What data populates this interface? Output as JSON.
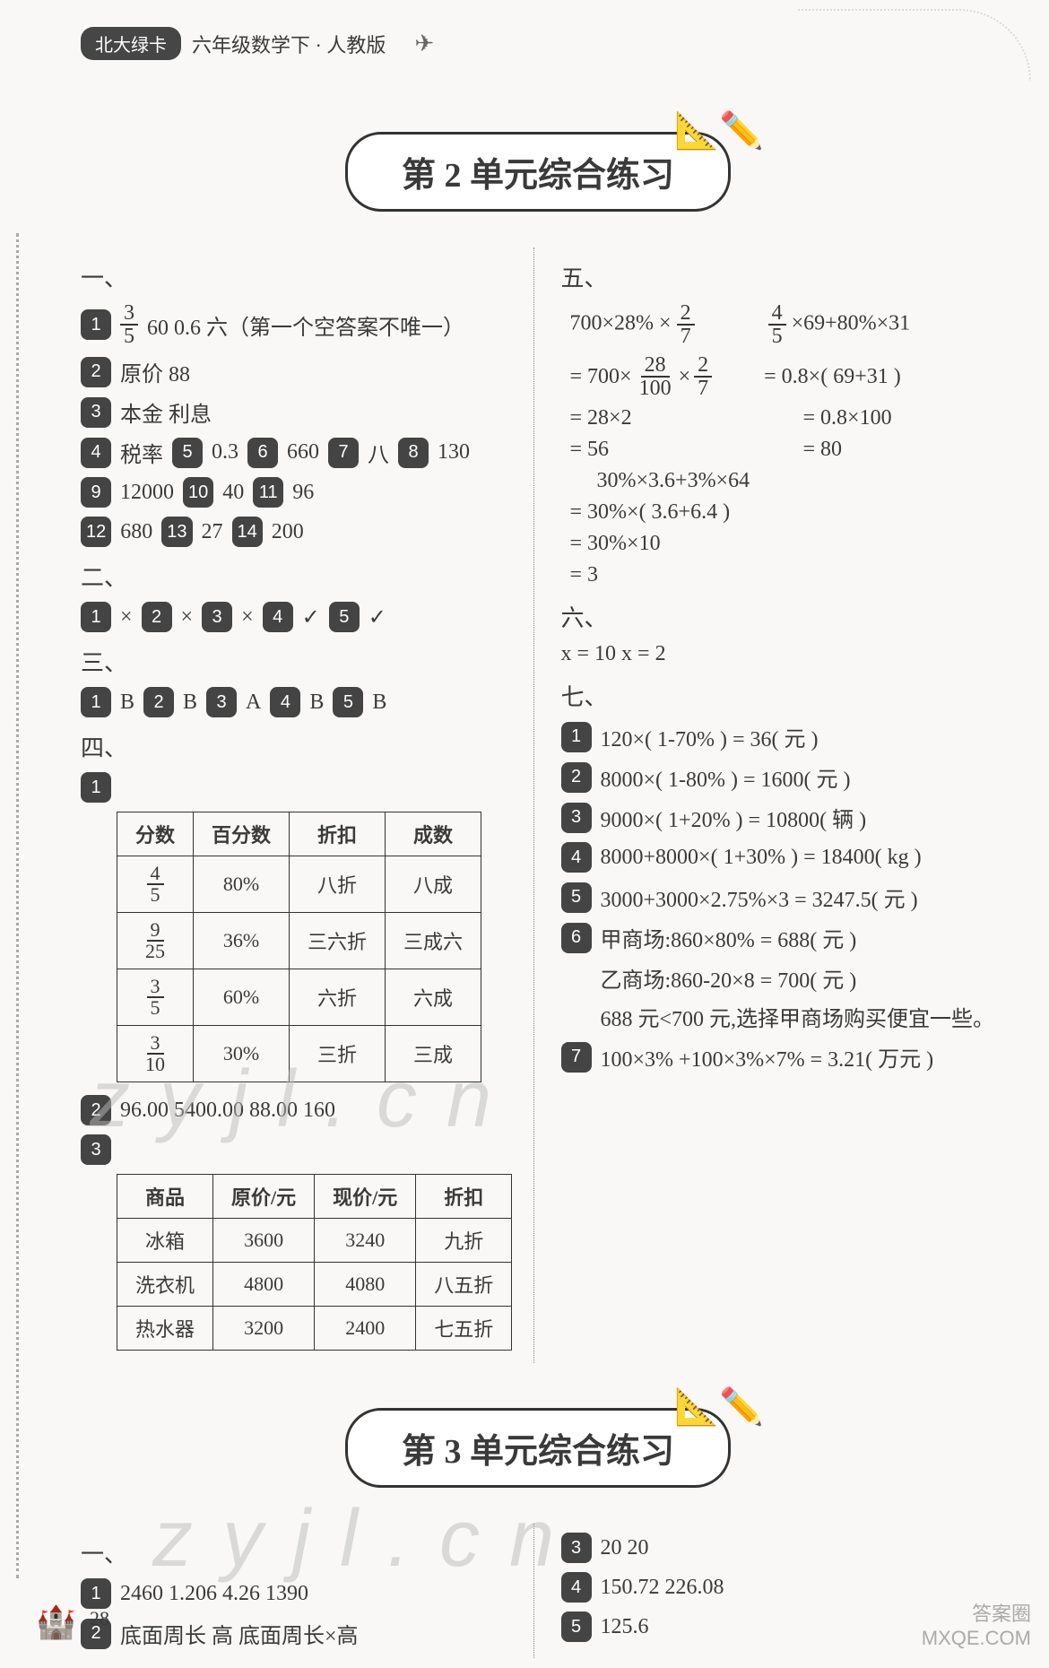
{
  "header": {
    "pill": "北大绿卡",
    "subtitle": "六年级数学下 · 人教版"
  },
  "unit2": {
    "title": "第 2 单元综合练习",
    "left": {
      "sec1_label": "一、",
      "q1_frac_n": "3",
      "q1_frac_d": "5",
      "q1_rest": "60   0.6   六（第一个空答案不唯一）",
      "q2": "原价   88",
      "q3": "本金   利息",
      "q4": "税率",
      "q5": "0.3",
      "q6": "660",
      "q7": "八",
      "q8": "130",
      "q9": "12000",
      "q10": "40",
      "q11": "96",
      "q12": "680",
      "q13": "27",
      "q14": "200",
      "sec2_label": "二、",
      "tf1": "×",
      "tf2": "×",
      "tf3": "×",
      "tf4": "✓",
      "tf5": "✓",
      "sec3_label": "三、",
      "c1": "B",
      "c2": "B",
      "c3": "A",
      "c4": "B",
      "c5": "B",
      "sec4_label": "四、",
      "table1": {
        "columns": [
          "分数",
          "百分数",
          "折扣",
          "成数"
        ],
        "rows": [
          {
            "num": "4",
            "den": "5",
            "pct": "80%",
            "disc": "八折",
            "cheng": "八成"
          },
          {
            "num": "9",
            "den": "25",
            "pct": "36%",
            "disc": "三六折",
            "cheng": "三成六"
          },
          {
            "num": "3",
            "den": "5",
            "pct": "60%",
            "disc": "六折",
            "cheng": "六成"
          },
          {
            "num": "3",
            "den": "10",
            "pct": "30%",
            "disc": "三折",
            "cheng": "三成"
          }
        ]
      },
      "q4_2": "96.00   5400.00   88.00   160",
      "table3": {
        "columns": [
          "商品",
          "原价/元",
          "现价/元",
          "折扣"
        ],
        "rows": [
          [
            "冰箱",
            "3600",
            "3240",
            "九折"
          ],
          [
            "洗衣机",
            "4800",
            "4080",
            "八五折"
          ],
          [
            "热水器",
            "3200",
            "2400",
            "七五折"
          ]
        ]
      }
    },
    "right": {
      "sec5_label": "五、",
      "p1_a": "700×28% ×",
      "p1_frac_n": "2",
      "p1_frac_d": "7",
      "p1_gap": "          ",
      "p1_b_frac_n": "4",
      "p1_b_frac_d": "5",
      "p1_b": "×69+80%×31",
      "p2_a": "= 700×",
      "p2_f1_n": "28",
      "p2_f1_d": "100",
      "p2_mid": "×",
      "p2_f2_n": "2",
      "p2_f2_d": "7",
      "p2_b": "= 0.8×( 69+31 )",
      "p3_a": "= 28×2",
      "p3_c": "= 0.8×100",
      "p3_b2": "= 80",
      "p4": "= 56",
      "p5": "30%×3.6+3%×64",
      "p6": "= 30%×( 3.6+6.4 )",
      "p7": "= 30%×10",
      "p8": "= 3",
      "sec6_label": "六、",
      "six": "x = 10    x = 2",
      "sec7_label": "七、",
      "s1": "120×( 1-70% ) = 36( 元 )",
      "s2": "8000×( 1-80% ) = 1600( 元 )",
      "s3": "9000×( 1+20% ) = 10800( 辆 )",
      "s4": "8000+8000×( 1+30% ) = 18400( kg )",
      "s5": "3000+3000×2.75%×3 = 3247.5( 元 )",
      "s6a": "甲商场:860×80% = 688( 元 )",
      "s6b": "乙商场:860-20×8 = 700( 元 )",
      "s6c": "688 元<700 元,选择甲商场购买便宜一些。",
      "s7": "100×3% +100×3%×7% = 3.21( 万元 )"
    }
  },
  "unit3": {
    "title": "第 3 单元综合练习",
    "left": {
      "sec1_label": "一、",
      "q1": "2460   1.206   4.26   1390",
      "q2": "底面周长   高   底面周长×高"
    },
    "right": {
      "q3": "20   20",
      "q4": "150.72   226.08",
      "q5": "125.6"
    }
  },
  "footer": {
    "page": "28",
    "corner1": "答案圈",
    "corner2": "MXQE.COM"
  },
  "watermark": "z y j l . c n"
}
